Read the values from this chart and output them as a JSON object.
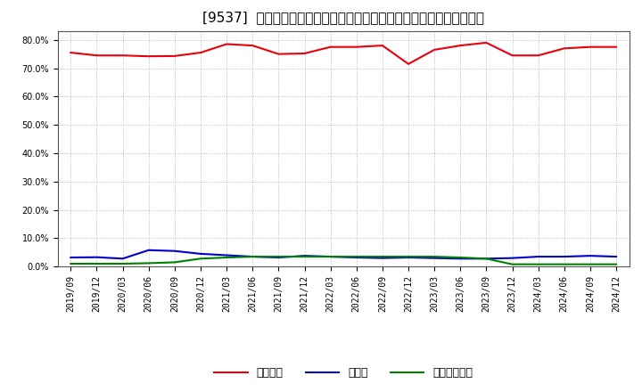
{
  "title": "[9537]  自己資本、のれん、繰延税金資産の総資産に対する比率の推移",
  "x_labels": [
    "2019/09",
    "2019/12",
    "2020/03",
    "2020/06",
    "2020/09",
    "2020/12",
    "2021/03",
    "2021/06",
    "2021/09",
    "2021/12",
    "2022/03",
    "2022/06",
    "2022/09",
    "2022/12",
    "2023/03",
    "2023/06",
    "2023/09",
    "2023/12",
    "2024/03",
    "2024/06",
    "2024/09",
    "2024/12"
  ],
  "jikoshihon": [
    75.5,
    74.5,
    74.5,
    74.2,
    74.3,
    75.5,
    78.5,
    78.0,
    75.0,
    75.2,
    77.5,
    77.5,
    78.0,
    71.5,
    76.5,
    78.0,
    79.0,
    74.5,
    74.5,
    77.0,
    77.5,
    77.5
  ],
  "noren": [
    3.2,
    3.3,
    2.8,
    5.8,
    5.5,
    4.5,
    4.0,
    3.5,
    3.2,
    3.8,
    3.5,
    3.2,
    3.0,
    3.2,
    3.0,
    2.8,
    2.8,
    3.0,
    3.5,
    3.5,
    3.8,
    3.5
  ],
  "kurinobe": [
    1.0,
    1.0,
    1.0,
    1.2,
    1.5,
    2.8,
    3.2,
    3.5,
    3.5,
    3.5,
    3.5,
    3.5,
    3.5,
    3.5,
    3.5,
    3.2,
    2.8,
    0.8,
    0.8,
    0.8,
    0.8,
    0.8
  ],
  "jikoshihon_color": "#e8000d",
  "noren_color": "#0000cd",
  "kurinobe_color": "#008000",
  "legend_labels": [
    "自己資本",
    "のれん",
    "繰延税金資産"
  ],
  "ylim": [
    0,
    83
  ],
  "yticks": [
    0,
    10,
    20,
    30,
    40,
    50,
    60,
    70,
    80
  ],
  "background_color": "#ffffff",
  "plot_bg_color": "#ffffff",
  "grid_color": "#aaaaaa",
  "title_fontsize": 11,
  "tick_fontsize": 7,
  "legend_fontsize": 9
}
